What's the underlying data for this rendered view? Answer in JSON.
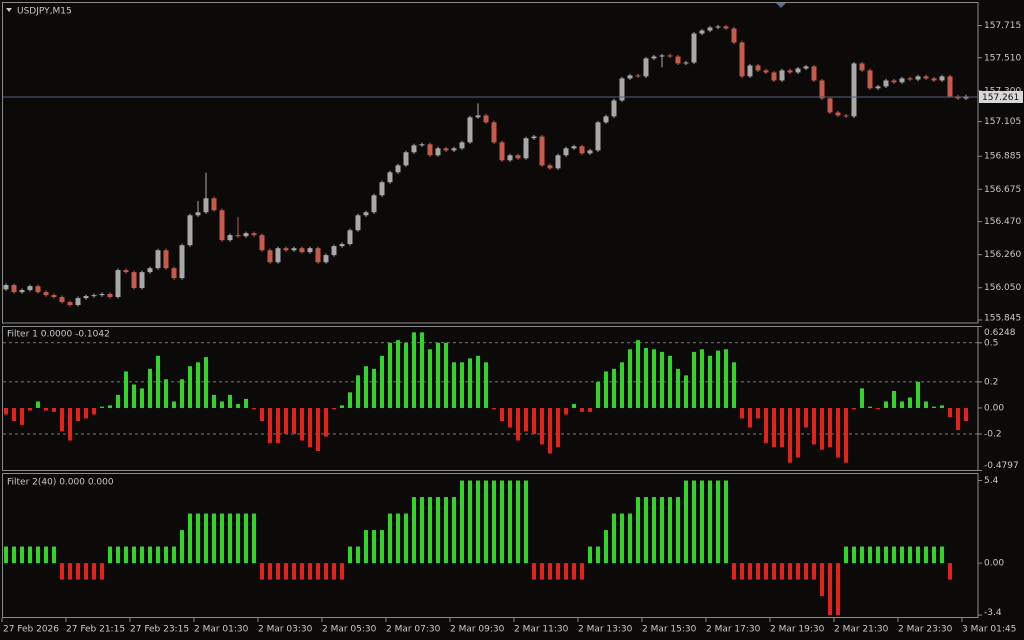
{
  "chart_data": [
    {
      "type": "candlestick",
      "title": "USDJPY,M15",
      "up_color": "#a8a8a8",
      "down_color": "#c65a4b",
      "current_price": 157.261,
      "ylim": [
        155.826,
        157.861
      ],
      "yticks": [
        157.715,
        {
          "value": 157.51,
          "label": "157.510"
        },
        {
          "value": 157.3,
          "label": "157.300"
        },
        157.105,
        156.885,
        156.675,
        {
          "value": 156.47,
          "label": "156.470"
        },
        {
          "value": 156.26,
          "label": "156.260"
        },
        {
          "value": 156.05,
          "label": "156.050"
        },
        155.845
      ],
      "categories": [
        "27 Feb 2026",
        null,
        null,
        null,
        null,
        null,
        null,
        null,
        "27 Feb 21:15",
        null,
        null,
        null,
        null,
        null,
        null,
        null,
        "27 Feb 23:15",
        null,
        null,
        null,
        null,
        null,
        null,
        null,
        "2 Mar 01:30",
        null,
        null,
        null,
        null,
        null,
        null,
        null,
        "2 Mar 03:30",
        null,
        null,
        null,
        null,
        null,
        null,
        null,
        "2 Mar 05:30",
        null,
        null,
        null,
        null,
        null,
        null,
        null,
        "2 Mar 07:30",
        null,
        null,
        null,
        null,
        null,
        null,
        null,
        "2 Mar 09:30",
        null,
        null,
        null,
        null,
        null,
        null,
        null,
        "2 Mar 11:30",
        null,
        null,
        null,
        null,
        null,
        null,
        null,
        "2 Mar 13:30",
        null,
        null,
        null,
        null,
        null,
        null,
        null,
        "2 Mar 15:30",
        null,
        null,
        null,
        null,
        null,
        null,
        null,
        "2 Mar 17:30",
        null,
        null,
        null,
        null,
        null,
        null,
        null,
        "2 Mar 19:30",
        null,
        null,
        null,
        null,
        null,
        null,
        null,
        "2 Mar 21:30",
        null,
        null,
        null,
        null,
        null,
        null,
        null,
        "2 Mar 23:30",
        null,
        null,
        null,
        null,
        null,
        null,
        null,
        "3 Mar 01:45"
      ],
      "candles": [
        [
          156.04,
          156.077,
          156.03,
          156.067
        ],
        [
          156.067,
          156.077,
          156.012,
          156.022
        ],
        [
          156.022,
          156.045,
          156.012,
          156.035
        ],
        [
          156.035,
          156.07,
          156.025,
          156.06
        ],
        [
          156.06,
          156.07,
          156.012,
          156.022
        ],
        [
          156.022,
          156.032,
          155.993,
          156.003
        ],
        [
          156.003,
          156.013,
          155.981,
          155.991
        ],
        [
          155.991,
          156.001,
          155.949,
          155.959
        ],
        [
          155.959,
          155.969,
          155.93,
          155.94
        ],
        [
          155.94,
          155.994,
          155.93,
          155.984
        ],
        [
          155.984,
          156.007,
          155.974,
          155.997
        ],
        [
          155.997,
          156.013,
          155.987,
          156.003
        ],
        [
          156.003,
          156.02,
          155.993,
          156.01
        ],
        [
          156.01,
          156.02,
          155.981,
          155.991
        ],
        [
          155.991,
          156.172,
          155.981,
          156.162
        ],
        [
          156.162,
          156.172,
          156.139,
          156.149
        ],
        [
          156.149,
          156.159,
          156.038,
          156.048
        ],
        [
          156.048,
          156.159,
          156.038,
          156.149
        ],
        [
          156.149,
          156.184,
          156.139,
          156.174
        ],
        [
          156.174,
          156.298,
          156.164,
          156.288
        ],
        [
          156.288,
          156.298,
          156.164,
          156.174
        ],
        [
          156.174,
          156.184,
          156.101,
          156.111
        ],
        [
          156.111,
          156.33,
          156.101,
          156.32
        ],
        [
          156.32,
          156.52,
          156.31,
          156.51
        ],
        [
          156.51,
          156.6,
          156.5,
          156.529
        ],
        [
          156.529,
          156.78,
          156.519,
          156.618
        ],
        [
          156.618,
          156.628,
          156.532,
          156.542
        ],
        [
          156.542,
          156.552,
          156.342,
          156.352
        ],
        [
          156.352,
          156.394,
          156.342,
          156.384
        ],
        [
          156.384,
          156.5,
          156.367,
          156.377
        ],
        [
          156.377,
          156.406,
          156.367,
          156.396
        ],
        [
          156.396,
          156.406,
          156.374,
          156.384
        ],
        [
          156.384,
          156.394,
          156.278,
          156.288
        ],
        [
          156.288,
          156.298,
          156.202,
          156.212
        ],
        [
          156.212,
          156.311,
          156.202,
          156.301
        ],
        [
          156.301,
          156.311,
          156.278,
          156.288
        ],
        [
          156.288,
          156.311,
          156.278,
          156.301
        ],
        [
          156.301,
          156.311,
          156.266,
          156.276
        ],
        [
          156.276,
          156.311,
          156.266,
          156.301
        ],
        [
          156.301,
          156.311,
          156.202,
          156.212
        ],
        [
          156.212,
          156.267,
          156.202,
          156.257
        ],
        [
          156.257,
          156.324,
          156.247,
          156.314
        ],
        [
          156.314,
          156.337,
          156.304,
          156.327
        ],
        [
          156.327,
          156.425,
          156.317,
          156.415
        ],
        [
          156.415,
          156.52,
          156.405,
          156.51
        ],
        [
          156.51,
          156.539,
          156.5,
          156.529
        ],
        [
          156.529,
          156.647,
          156.519,
          156.637
        ],
        [
          156.637,
          156.73,
          156.627,
          156.72
        ],
        [
          156.72,
          156.793,
          156.71,
          156.783
        ],
        [
          156.783,
          156.837,
          156.773,
          156.827
        ],
        [
          156.827,
          156.92,
          156.817,
          156.91
        ],
        [
          156.91,
          156.964,
          156.9,
          156.954
        ],
        [
          156.954,
          156.971,
          156.944,
          156.961
        ],
        [
          156.961,
          156.971,
          156.881,
          156.891
        ],
        [
          156.891,
          156.945,
          156.881,
          156.935
        ],
        [
          156.935,
          156.945,
          156.912,
          156.922
        ],
        [
          156.922,
          156.945,
          156.912,
          156.935
        ],
        [
          156.935,
          156.983,
          156.925,
          156.973
        ],
        [
          156.973,
          157.142,
          156.963,
          157.132
        ],
        [
          157.132,
          157.22,
          157.122,
          157.144
        ],
        [
          157.144,
          157.154,
          157.09,
          157.1
        ],
        [
          157.1,
          157.11,
          156.963,
          156.973
        ],
        [
          156.973,
          156.983,
          156.849,
          156.859
        ],
        [
          156.859,
          156.901,
          156.849,
          156.891
        ],
        [
          156.891,
          156.901,
          156.862,
          156.872
        ],
        [
          156.872,
          157.009,
          156.862,
          156.999
        ],
        [
          156.999,
          157.02,
          156.989,
          157.01
        ],
        [
          157.01,
          157.02,
          156.817,
          156.827
        ],
        [
          156.827,
          156.837,
          156.798,
          156.808
        ],
        [
          156.808,
          156.901,
          156.798,
          156.891
        ],
        [
          156.891,
          156.945,
          156.881,
          156.935
        ],
        [
          156.935,
          156.958,
          156.925,
          156.948
        ],
        [
          156.948,
          156.958,
          156.893,
          156.903
        ],
        [
          156.903,
          156.932,
          156.893,
          156.922
        ],
        [
          156.922,
          157.11,
          156.912,
          157.1
        ],
        [
          157.1,
          157.148,
          157.09,
          157.138
        ],
        [
          157.138,
          157.249,
          157.128,
          157.239
        ],
        [
          157.239,
          157.389,
          157.229,
          157.379
        ],
        [
          157.379,
          157.408,
          157.369,
          157.398
        ],
        [
          157.398,
          157.408,
          157.382,
          157.392
        ],
        [
          157.392,
          157.516,
          157.382,
          157.506
        ],
        [
          157.506,
          157.528,
          157.496,
          157.518
        ],
        [
          157.518,
          157.535,
          157.45,
          157.525
        ],
        [
          157.525,
          157.535,
          157.508,
          157.518
        ],
        [
          157.518,
          157.528,
          157.464,
          157.474
        ],
        [
          157.474,
          157.49,
          157.464,
          157.48
        ],
        [
          157.48,
          157.674,
          157.47,
          157.664
        ],
        [
          157.664,
          157.693,
          157.654,
          157.683
        ],
        [
          157.683,
          157.712,
          157.673,
          157.702
        ],
        [
          157.702,
          157.719,
          157.692,
          157.709
        ],
        [
          157.709,
          157.719,
          157.686,
          157.696
        ],
        [
          157.696,
          157.706,
          157.597,
          157.607
        ],
        [
          157.607,
          157.617,
          157.382,
          157.392
        ],
        [
          157.392,
          157.471,
          157.382,
          157.461
        ],
        [
          157.461,
          157.471,
          157.42,
          157.43
        ],
        [
          157.43,
          157.44,
          157.407,
          157.417
        ],
        [
          157.417,
          157.427,
          157.356,
          157.366
        ],
        [
          157.366,
          157.44,
          157.356,
          157.43
        ],
        [
          157.43,
          157.44,
          157.407,
          157.417
        ],
        [
          157.417,
          157.452,
          157.407,
          157.442
        ],
        [
          157.442,
          157.465,
          157.432,
          157.455
        ],
        [
          157.455,
          157.465,
          157.356,
          157.366
        ],
        [
          157.366,
          157.376,
          157.242,
          157.252
        ],
        [
          157.252,
          157.262,
          157.153,
          157.163
        ],
        [
          157.163,
          157.173,
          157.134,
          157.144
        ],
        [
          157.144,
          157.154,
          157.128,
          157.138
        ],
        [
          157.138,
          157.484,
          157.128,
          157.474
        ],
        [
          157.474,
          157.484,
          157.42,
          157.43
        ],
        [
          157.43,
          157.44,
          157.306,
          157.316
        ],
        [
          157.316,
          157.338,
          157.306,
          157.328
        ],
        [
          157.328,
          157.376,
          157.318,
          157.366
        ],
        [
          157.366,
          157.376,
          157.344,
          157.354
        ],
        [
          157.354,
          157.389,
          157.344,
          157.379
        ],
        [
          157.379,
          157.389,
          157.362,
          157.372
        ],
        [
          157.372,
          157.402,
          157.362,
          157.392
        ],
        [
          157.392,
          157.402,
          157.369,
          157.379
        ],
        [
          157.379,
          157.389,
          157.356,
          157.366
        ],
        [
          157.366,
          157.402,
          157.356,
          157.392
        ],
        [
          157.392,
          157.402,
          157.255,
          157.265
        ],
        [
          157.265,
          157.275,
          157.242,
          157.252
        ],
        [
          157.252,
          157.275,
          157.242,
          157.265
        ]
      ]
    },
    {
      "type": "bar",
      "title": "Filter 1 0.0000 -0.1042",
      "up_color": "#33d42a",
      "down_color": "#e3231b",
      "grid": "dashed",
      "ylim": [
        -0.4797,
        0.6248
      ],
      "yticks": [
        0.6248,
        0.5,
        0.2,
        {
          "value": 0,
          "label": "0.00"
        },
        -0.2,
        -0.4797
      ],
      "values": [
        -0.05,
        -0.1,
        -0.13,
        -0.02,
        0.05,
        -0.02,
        -0.03,
        -0.18,
        -0.25,
        -0.1,
        -0.08,
        -0.05,
        0.01,
        0.02,
        0.1,
        0.28,
        0.18,
        0.15,
        0.3,
        0.4,
        0.22,
        0.05,
        0.22,
        0.32,
        0.35,
        0.39,
        0.1,
        0.05,
        0.1,
        0.03,
        0.07,
        -0.01,
        -0.1,
        -0.27,
        -0.27,
        -0.2,
        -0.2,
        -0.25,
        -0.3,
        -0.33,
        -0.22,
        -0.01,
        0.02,
        0.12,
        0.25,
        0.32,
        0.3,
        0.4,
        0.5,
        0.52,
        0.5,
        0.58,
        0.58,
        0.45,
        0.5,
        0.5,
        0.35,
        0.35,
        0.38,
        0.4,
        0.35,
        -0.01,
        -0.1,
        -0.15,
        -0.25,
        -0.18,
        -0.2,
        -0.28,
        -0.35,
        -0.3,
        -0.05,
        0.03,
        -0.03,
        -0.03,
        0.2,
        0.28,
        0.3,
        0.35,
        0.45,
        0.52,
        0.46,
        0.45,
        0.43,
        0.4,
        0.3,
        0.25,
        0.43,
        0.45,
        0.4,
        0.44,
        0.45,
        0.35,
        -0.08,
        -0.15,
        -0.08,
        -0.27,
        -0.3,
        -0.3,
        -0.42,
        -0.38,
        -0.15,
        -0.28,
        -0.32,
        -0.3,
        -0.38,
        -0.42,
        -0.01,
        0.15,
        0.01,
        -0.01,
        0.05,
        0.13,
        0.05,
        0.08,
        0.2,
        0.05,
        0.01,
        0.02,
        -0.07,
        -0.17,
        -0.1
      ]
    },
    {
      "type": "bar",
      "title": "Filter 2(40) 0.000 0.000",
      "up_color": "#33d42a",
      "down_color": "#e3231b",
      "ylim": [
        -3.56,
        5.86
      ],
      "yticks": [
        5.4,
        {
          "value": 0,
          "label": "0.00"
        },
        -3.4
      ],
      "values": [
        1.08,
        1.08,
        1.08,
        1.08,
        1.08,
        1.08,
        1.08,
        -1.08,
        -1.08,
        -1.08,
        -1.08,
        -1.08,
        -1.08,
        1.08,
        1.08,
        1.08,
        1.08,
        1.08,
        1.08,
        1.08,
        1.08,
        1.08,
        2.16,
        3.24,
        3.24,
        3.24,
        3.24,
        3.24,
        3.24,
        3.24,
        3.24,
        3.24,
        -1.08,
        -1.08,
        -1.08,
        -1.08,
        -1.08,
        -1.08,
        -1.08,
        -1.08,
        -1.08,
        -1.08,
        -1.08,
        1.08,
        1.08,
        2.16,
        2.16,
        2.16,
        3.24,
        3.24,
        3.24,
        4.32,
        4.32,
        4.32,
        4.32,
        4.32,
        4.32,
        5.4,
        5.4,
        5.4,
        5.4,
        5.4,
        5.4,
        5.4,
        5.4,
        5.4,
        -1.08,
        -1.08,
        -1.08,
        -1.08,
        -1.08,
        -1.08,
        -1.08,
        1.08,
        1.08,
        2.16,
        3.24,
        3.24,
        3.24,
        4.32,
        4.32,
        4.32,
        4.32,
        4.32,
        4.32,
        5.4,
        5.4,
        5.4,
        5.4,
        5.4,
        5.4,
        -1.08,
        -1.08,
        -1.08,
        -1.08,
        -1.08,
        -1.08,
        -1.08,
        -1.08,
        -1.08,
        -1.08,
        -1.08,
        -2.16,
        -3.4,
        -3.4,
        1.08,
        1.08,
        1.08,
        1.08,
        1.08,
        1.08,
        1.08,
        1.08,
        1.08,
        1.08,
        1.08,
        1.08,
        1.08,
        -1.08,
        null,
        null
      ]
    }
  ]
}
